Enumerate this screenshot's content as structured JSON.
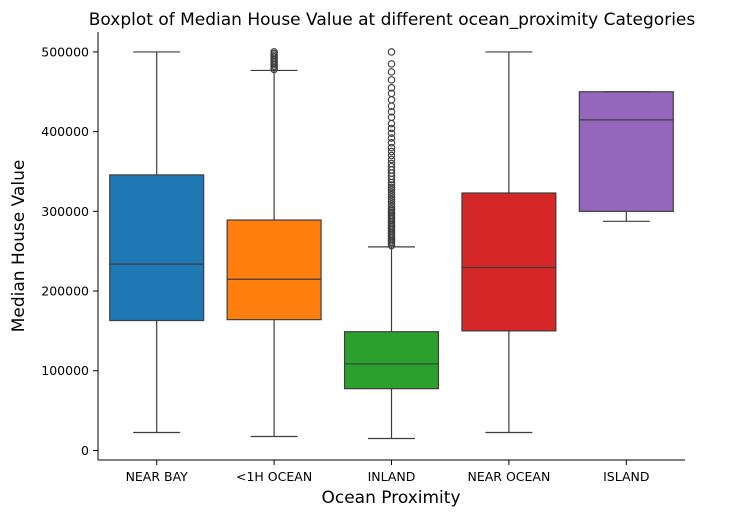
{
  "chart_data": {
    "type": "boxplot",
    "title": "Boxplot of Median House Value at different ocean_proximity Categories",
    "xlabel": "Ocean Proximity",
    "ylabel": "Median House Value",
    "ylim": [
      -12000,
      525000
    ],
    "yticks": [
      0,
      100000,
      200000,
      300000,
      400000,
      500000
    ],
    "ytick_labels": [
      "0",
      "100000",
      "200000",
      "300000",
      "400000",
      "500000"
    ],
    "grid": false,
    "categories": [
      "NEAR BAY",
      "<1H OCEAN",
      "INLAND",
      "NEAR OCEAN",
      "ISLAND"
    ],
    "boxes": [
      {
        "category": "NEAR BAY",
        "whisker_low": 22500,
        "q1": 163000,
        "median": 233800,
        "q3": 345700,
        "whisker_high": 500000,
        "color": "#1f77b4",
        "fliers": []
      },
      {
        "category": "<1H OCEAN",
        "whisker_low": 17500,
        "q1": 164100,
        "median": 214800,
        "q3": 289100,
        "whisker_high": 476800,
        "color": "#ff7f0e",
        "fliers": [
          478000,
          480000,
          482000,
          484000,
          486000,
          488000,
          490000,
          492000,
          494000,
          496000,
          498000,
          500000
        ]
      },
      {
        "category": "INLAND",
        "whisker_low": 14999,
        "q1": 77500,
        "median": 108500,
        "q3": 148950,
        "whisker_high": 255400,
        "color": "#2ca02c",
        "fliers": [
          257000,
          259000,
          261000,
          263000,
          265000,
          267000,
          269000,
          271000,
          273000,
          275000,
          277000,
          279000,
          281000,
          283000,
          285000,
          287000,
          289000,
          291000,
          293000,
          295000,
          297000,
          299000,
          301000,
          303000,
          306000,
          309000,
          312000,
          315000,
          318000,
          321000,
          324000,
          327000,
          330000,
          333000,
          336000,
          340000,
          344000,
          348000,
          352000,
          356000,
          360000,
          365000,
          370000,
          375000,
          380000,
          386000,
          392000,
          398000,
          404000,
          410000,
          418000,
          425000,
          432000,
          440000,
          448000,
          455000,
          465000,
          475000,
          485000,
          500000
        ]
      },
      {
        "category": "NEAR OCEAN",
        "whisker_low": 22500,
        "q1": 150000,
        "median": 229500,
        "q3": 323000,
        "whisker_high": 500000,
        "color": "#d62728",
        "fliers": []
      },
      {
        "category": "ISLAND",
        "whisker_low": 287500,
        "q1": 300000,
        "median": 414700,
        "q3": 450000,
        "whisker_high": 450000,
        "color": "#9467bd",
        "fliers": []
      }
    ]
  }
}
